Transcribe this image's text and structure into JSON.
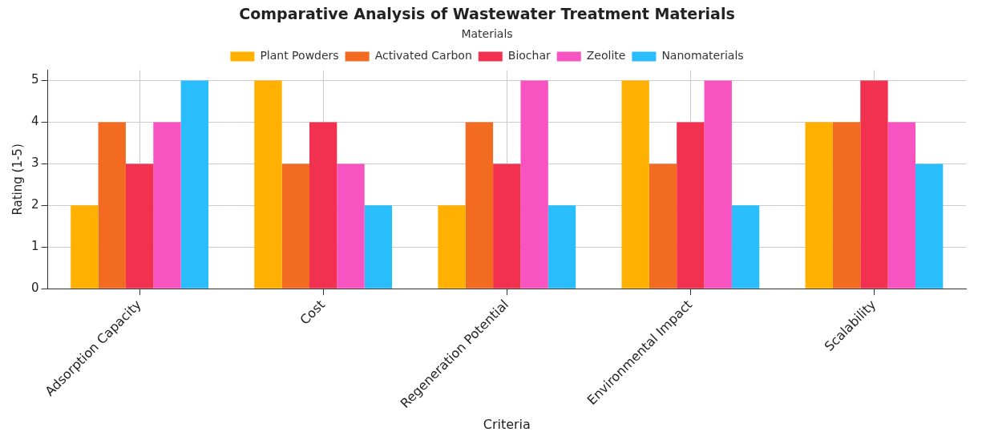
{
  "chart_data": {
    "type": "bar",
    "title": "Comparative Analysis of Wastewater Treatment Materials",
    "xlabel": "Criteria",
    "ylabel": "Rating (1-5)",
    "legend_title": "Materials",
    "categories": [
      "Adsorption Capacity",
      "Cost",
      "Regeneration Potential",
      "Environmental Impact",
      "Scalability"
    ],
    "series": [
      {
        "name": "Plant Powders",
        "color": "#ffb000",
        "values": [
          2,
          5,
          2,
          5,
          4
        ]
      },
      {
        "name": "Activated Carbon",
        "color": "#f26b21",
        "values": [
          4,
          3,
          4,
          3,
          4
        ]
      },
      {
        "name": "Biochar",
        "color": "#f2304f",
        "values": [
          3,
          4,
          3,
          4,
          5
        ]
      },
      {
        "name": "Zeolite",
        "color": "#f754c1",
        "values": [
          4,
          3,
          5,
          5,
          4
        ]
      },
      {
        "name": "Nanomaterials",
        "color": "#29bdfc",
        "values": [
          5,
          2,
          2,
          2,
          3
        ]
      }
    ],
    "ylim": [
      0,
      5.25
    ],
    "yticks": [
      0,
      1,
      2,
      3,
      4,
      5
    ],
    "grid": true,
    "legend": "top"
  }
}
